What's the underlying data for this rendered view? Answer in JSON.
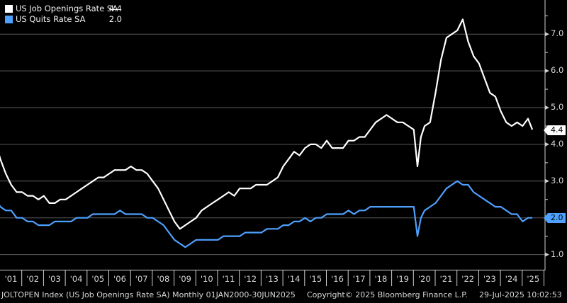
{
  "legend": {
    "series": [
      {
        "name": "US Job Openings Rate SA",
        "value": "4.4",
        "color": "#ffffff"
      },
      {
        "name": "US Quits Rate SA",
        "value": "2.0",
        "color": "#4ea1ff"
      }
    ]
  },
  "footer": {
    "left": "JOLTOPEN Index (US Job Openings Rate SA)  Monthly 01JAN2000-30JUN2025",
    "center": "Copyright© 2025 Bloomberg Finance L.P.",
    "right": "29-Jul-2025 10:02:53"
  },
  "tags": {
    "openings": "4.4",
    "quits": "2.0"
  },
  "axis": {
    "y_ticks": [
      "7.0",
      "6.0",
      "5.0",
      "4.0",
      "3.0",
      "2.0",
      "1.0"
    ],
    "x_ticks": [
      "'01",
      "'02",
      "'03",
      "'04",
      "'05",
      "'06",
      "'07",
      "'08",
      "'09",
      "'10",
      "'11",
      "'12",
      "'13",
      "'14",
      "'15",
      "'16",
      "'17",
      "'18",
      "'19",
      "'20",
      "'21",
      "'22",
      "'23",
      "'24",
      "'25"
    ]
  },
  "chart_data": {
    "type": "line",
    "title": "",
    "xlabel": "",
    "ylabel": "",
    "ylim": [
      0.6,
      8.0
    ],
    "x_range": [
      "2000-12",
      "2025-06"
    ],
    "grid": true,
    "legend_position": "top-left",
    "x": [
      2000.9,
      2001.0,
      2001.25,
      2001.5,
      2001.75,
      2002.0,
      2002.25,
      2002.5,
      2002.75,
      2003.0,
      2003.25,
      2003.5,
      2003.75,
      2004.0,
      2004.25,
      2004.5,
      2004.75,
      2005.0,
      2005.25,
      2005.5,
      2005.75,
      2006.0,
      2006.25,
      2006.5,
      2006.75,
      2007.0,
      2007.25,
      2007.5,
      2007.75,
      2008.0,
      2008.25,
      2008.5,
      2008.75,
      2009.0,
      2009.25,
      2009.5,
      2009.75,
      2010.0,
      2010.25,
      2010.5,
      2010.75,
      2011.0,
      2011.25,
      2011.5,
      2011.75,
      2012.0,
      2012.25,
      2012.5,
      2012.75,
      2013.0,
      2013.25,
      2013.5,
      2013.75,
      2014.0,
      2014.25,
      2014.5,
      2014.75,
      2015.0,
      2015.25,
      2015.5,
      2015.75,
      2016.0,
      2016.25,
      2016.5,
      2016.75,
      2017.0,
      2017.25,
      2017.5,
      2017.75,
      2018.0,
      2018.25,
      2018.5,
      2018.75,
      2019.0,
      2019.25,
      2019.5,
      2019.75,
      2020.0,
      2020.17,
      2020.33,
      2020.5,
      2020.75,
      2021.0,
      2021.25,
      2021.5,
      2021.75,
      2022.0,
      2022.25,
      2022.5,
      2022.75,
      2023.0,
      2023.25,
      2023.5,
      2023.75,
      2024.0,
      2024.25,
      2024.5,
      2024.75,
      2025.0,
      2025.25,
      2025.45
    ],
    "series": [
      {
        "name": "US Job Openings Rate SA",
        "color": "#ffffff",
        "values": [
          3.8,
          3.6,
          3.2,
          2.9,
          2.7,
          2.7,
          2.6,
          2.6,
          2.5,
          2.6,
          2.4,
          2.4,
          2.5,
          2.5,
          2.6,
          2.7,
          2.8,
          2.9,
          3.0,
          3.1,
          3.1,
          3.2,
          3.3,
          3.3,
          3.3,
          3.4,
          3.3,
          3.3,
          3.2,
          3.0,
          2.8,
          2.5,
          2.2,
          1.9,
          1.7,
          1.8,
          1.9,
          2.0,
          2.2,
          2.3,
          2.4,
          2.5,
          2.6,
          2.7,
          2.6,
          2.8,
          2.8,
          2.8,
          2.9,
          2.9,
          2.9,
          3.0,
          3.1,
          3.4,
          3.6,
          3.8,
          3.7,
          3.9,
          4.0,
          4.0,
          3.9,
          4.1,
          3.9,
          3.9,
          3.9,
          4.1,
          4.1,
          4.2,
          4.2,
          4.4,
          4.6,
          4.7,
          4.8,
          4.7,
          4.6,
          4.6,
          4.5,
          4.4,
          3.4,
          4.2,
          4.5,
          4.6,
          5.4,
          6.3,
          6.9,
          7.0,
          7.1,
          7.4,
          6.8,
          6.4,
          6.2,
          5.8,
          5.4,
          5.3,
          4.9,
          4.6,
          4.5,
          4.6,
          4.5,
          4.7,
          4.4
        ]
      },
      {
        "name": "US Quits Rate SA",
        "color": "#4ea1ff",
        "values": [
          2.4,
          2.3,
          2.2,
          2.2,
          2.0,
          2.0,
          1.9,
          1.9,
          1.8,
          1.8,
          1.8,
          1.9,
          1.9,
          1.9,
          1.9,
          2.0,
          2.0,
          2.0,
          2.1,
          2.1,
          2.1,
          2.1,
          2.1,
          2.2,
          2.1,
          2.1,
          2.1,
          2.1,
          2.0,
          2.0,
          1.9,
          1.8,
          1.6,
          1.4,
          1.3,
          1.2,
          1.3,
          1.4,
          1.4,
          1.4,
          1.4,
          1.4,
          1.5,
          1.5,
          1.5,
          1.5,
          1.6,
          1.6,
          1.6,
          1.6,
          1.7,
          1.7,
          1.7,
          1.8,
          1.8,
          1.9,
          1.9,
          2.0,
          1.9,
          2.0,
          2.0,
          2.1,
          2.1,
          2.1,
          2.1,
          2.2,
          2.1,
          2.2,
          2.2,
          2.3,
          2.3,
          2.3,
          2.3,
          2.3,
          2.3,
          2.3,
          2.3,
          2.3,
          1.5,
          2.0,
          2.2,
          2.3,
          2.4,
          2.6,
          2.8,
          2.9,
          3.0,
          2.9,
          2.9,
          2.7,
          2.6,
          2.5,
          2.4,
          2.3,
          2.3,
          2.2,
          2.1,
          2.1,
          1.9,
          2.0,
          2.0
        ]
      }
    ]
  }
}
